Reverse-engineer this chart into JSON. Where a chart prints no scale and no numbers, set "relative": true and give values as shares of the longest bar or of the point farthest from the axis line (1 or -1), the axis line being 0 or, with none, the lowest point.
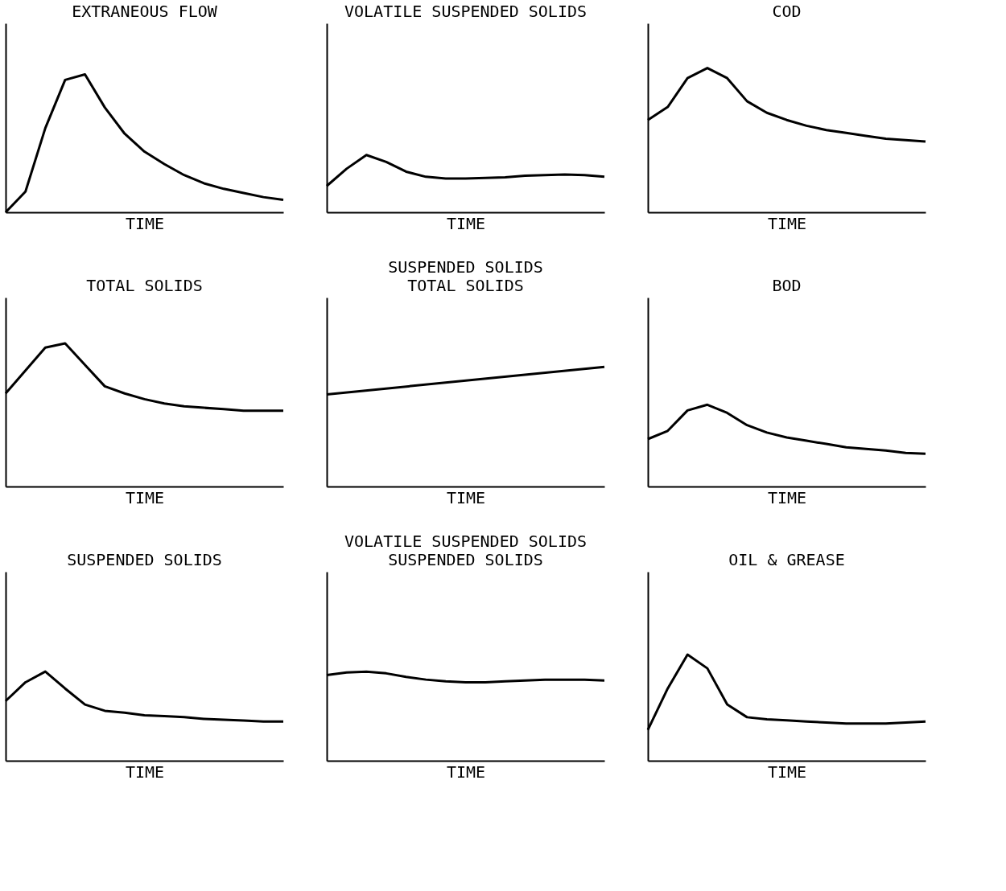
{
  "chart_data": [
    {
      "type": "line",
      "title": "EXTRANEOUS FLOW",
      "xlabel": "TIME",
      "relative": true,
      "categories": [
        null,
        null,
        null,
        null,
        null,
        null,
        null,
        null,
        null,
        null,
        null,
        null,
        null,
        null,
        null
      ],
      "series": [
        {
          "color": "#000000",
          "values": [
            0,
            0.15,
            0.61,
            0.96,
            1.0,
            0.76,
            0.57,
            0.44,
            0.35,
            0.27,
            0.21,
            0.17,
            0.14,
            0.11,
            0.09
          ]
        }
      ]
    },
    {
      "type": "line",
      "title": "VOLATILE SUSPENDED SOLIDS",
      "xlabel": "TIME",
      "relative": true,
      "categories": [
        null,
        null,
        null,
        null,
        null,
        null,
        null,
        null,
        null,
        null,
        null,
        null,
        null,
        null,
        null
      ],
      "series": [
        {
          "color": "#000000",
          "values": [
            0.46,
            0.76,
            1.0,
            0.88,
            0.71,
            0.62,
            0.59,
            0.59,
            0.6,
            0.61,
            0.64,
            0.65,
            0.66,
            0.65,
            0.62
          ]
        }
      ]
    },
    {
      "type": "line",
      "title": "COD",
      "xlabel": "TIME",
      "relative": true,
      "categories": [
        null,
        null,
        null,
        null,
        null,
        null,
        null,
        null,
        null,
        null,
        null,
        null,
        null,
        null,
        null
      ],
      "series": [
        {
          "color": "#000000",
          "values": [
            0.64,
            0.73,
            0.93,
            1.0,
            0.93,
            0.77,
            0.69,
            0.64,
            0.6,
            0.57,
            0.55,
            0.53,
            0.51,
            0.5,
            0.49
          ]
        }
      ]
    },
    {
      "type": "line",
      "title": "TOTAL SOLIDS",
      "xlabel": "TIME",
      "relative": true,
      "categories": [
        null,
        null,
        null,
        null,
        null,
        null,
        null,
        null,
        null,
        null,
        null,
        null,
        null,
        null,
        null
      ],
      "series": [
        {
          "color": "#000000",
          "values": [
            0.65,
            0.81,
            0.97,
            1.0,
            0.85,
            0.7,
            0.65,
            0.61,
            0.58,
            0.56,
            0.55,
            0.54,
            0.53,
            0.53,
            0.53
          ]
        }
      ]
    },
    {
      "type": "line",
      "title": "SUSPENDED SOLIDS",
      "subtitle": "TOTAL SOLIDS",
      "xlabel": "TIME",
      "relative": true,
      "categories": [
        null,
        null
      ],
      "series": [
        {
          "color": "#000000",
          "values": [
            0.77,
            1.0
          ]
        }
      ]
    },
    {
      "type": "line",
      "title": "BOD",
      "xlabel": "TIME",
      "relative": true,
      "categories": [
        null,
        null,
        null,
        null,
        null,
        null,
        null,
        null,
        null,
        null,
        null,
        null,
        null,
        null,
        null
      ],
      "series": [
        {
          "color": "#000000",
          "values": [
            0.58,
            0.68,
            0.93,
            1.0,
            0.9,
            0.75,
            0.66,
            0.6,
            0.56,
            0.52,
            0.48,
            0.46,
            0.44,
            0.41,
            0.4
          ]
        }
      ]
    },
    {
      "type": "line",
      "title": "SUSPENDED SOLIDS",
      "xlabel": "TIME",
      "relative": true,
      "categories": [
        null,
        null,
        null,
        null,
        null,
        null,
        null,
        null,
        null,
        null,
        null,
        null,
        null,
        null,
        null
      ],
      "series": [
        {
          "color": "#000000",
          "values": [
            0.67,
            0.88,
            1.0,
            0.81,
            0.63,
            0.56,
            0.54,
            0.51,
            0.5,
            0.49,
            0.47,
            0.46,
            0.45,
            0.44,
            0.44
          ]
        }
      ]
    },
    {
      "type": "line",
      "title": "VOLATILE SUSPENDED SOLIDS",
      "subtitle": "SUSPENDED SOLIDS",
      "xlabel": "TIME",
      "relative": true,
      "categories": [
        null,
        null,
        null,
        null,
        null,
        null,
        null,
        null,
        null,
        null,
        null,
        null,
        null,
        null,
        null
      ],
      "series": [
        {
          "color": "#000000",
          "values": [
            0.96,
            0.99,
            1.0,
            0.98,
            0.94,
            0.91,
            0.89,
            0.88,
            0.88,
            0.89,
            0.9,
            0.91,
            0.91,
            0.91,
            0.9
          ]
        }
      ]
    },
    {
      "type": "line",
      "title": "OIL & GREASE",
      "xlabel": "TIME",
      "relative": true,
      "categories": [
        null,
        null,
        null,
        null,
        null,
        null,
        null,
        null,
        null,
        null,
        null,
        null,
        null,
        null,
        null
      ],
      "series": [
        {
          "color": "#000000",
          "values": [
            0.29,
            0.68,
            1.0,
            0.87,
            0.53,
            0.41,
            0.39,
            0.38,
            0.37,
            0.36,
            0.35,
            0.35,
            0.35,
            0.36,
            0.37
          ]
        }
      ]
    }
  ]
}
